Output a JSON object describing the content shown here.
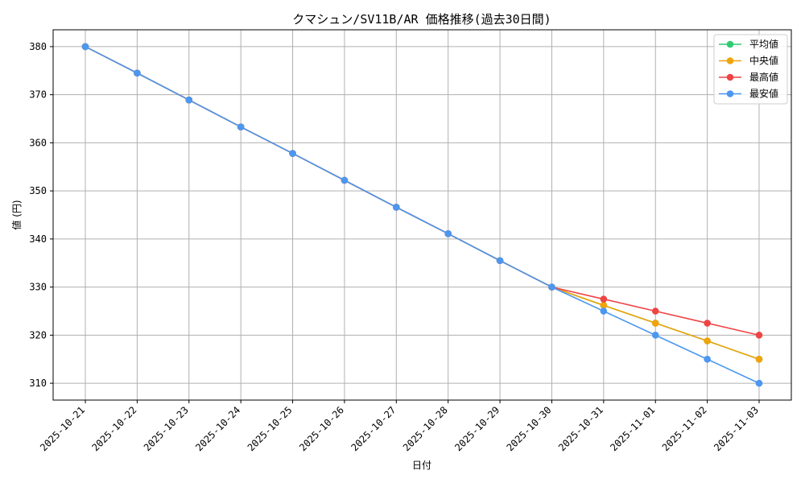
{
  "chart_data": {
    "type": "line",
    "title": "クマシュン/SV11B/AR 価格推移(過去30日間)",
    "xlabel": "日付",
    "ylabel": "値 (円)",
    "categories": [
      "2025-10-21",
      "2025-10-22",
      "2025-10-23",
      "2025-10-24",
      "2025-10-25",
      "2025-10-26",
      "2025-10-27",
      "2025-10-28",
      "2025-10-29",
      "2025-10-30",
      "2025-10-31",
      "2025-11-01",
      "2025-11-02",
      "2025-11-03"
    ],
    "ylim": [
      306.5,
      383.5
    ],
    "yticks": [
      310,
      320,
      330,
      340,
      350,
      360,
      370,
      380
    ],
    "grid": true,
    "legend_position": "top-right",
    "series": [
      {
        "name": "平均値",
        "color": "#2ecc71",
        "values": [
          380,
          374.5,
          368.9,
          363.3,
          357.8,
          352.2,
          346.6,
          341.1,
          335.5,
          330,
          326.2,
          322.5,
          318.8,
          315
        ]
      },
      {
        "name": "中央値",
        "color": "#f0a30a",
        "values": [
          380,
          374.5,
          368.9,
          363.3,
          357.8,
          352.2,
          346.6,
          341.1,
          335.5,
          330,
          326.2,
          322.5,
          318.8,
          315
        ]
      },
      {
        "name": "最高値",
        "color": "#ef4444",
        "values": [
          380,
          374.5,
          368.9,
          363.3,
          357.8,
          352.2,
          346.6,
          341.1,
          335.5,
          330,
          327.5,
          325,
          322.5,
          320
        ]
      },
      {
        "name": "最安値",
        "color": "#4c97f0",
        "values": [
          380,
          374.5,
          368.9,
          363.3,
          357.8,
          352.2,
          346.6,
          341.1,
          335.5,
          330,
          325,
          320,
          315,
          310
        ]
      }
    ]
  }
}
